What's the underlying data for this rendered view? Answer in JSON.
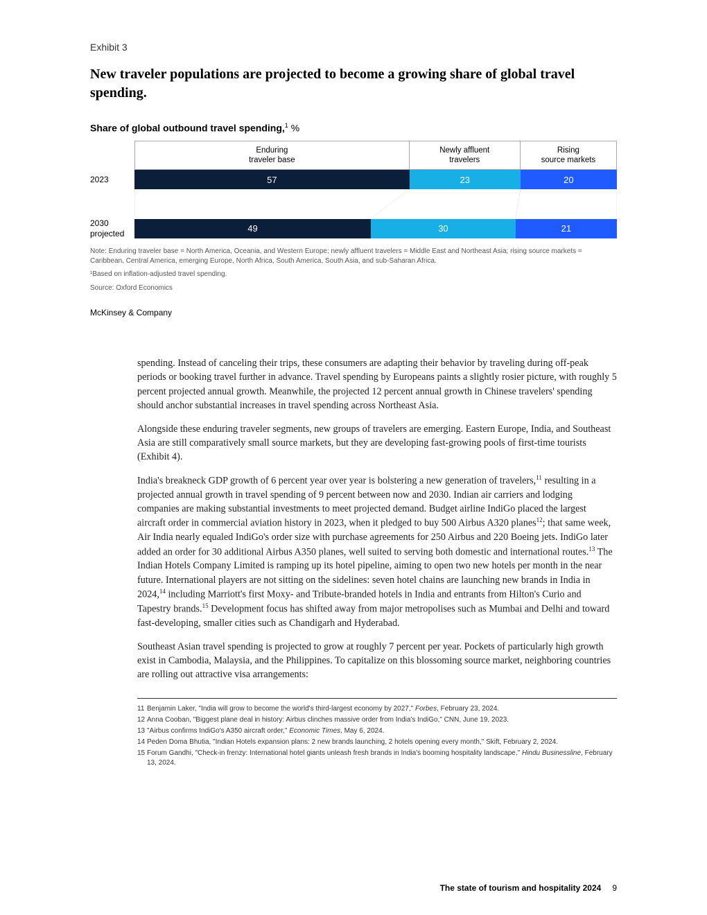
{
  "exhibit": {
    "label": "Exhibit 3",
    "title": "New traveler populations are projected to become a growing share of global travel spending.",
    "chart_title_bold": "Share of global outbound travel spending,",
    "chart_title_sup": "1",
    "chart_title_unit": " %",
    "chart": {
      "type": "stacked-bar",
      "segment_colors": [
        "#0b1e3a",
        "#17afe6",
        "#1f5bff"
      ],
      "border_color": "#aaaaaa",
      "headers": [
        "Enduring\ntraveler base",
        "Newly affluent\ntravelers",
        "Rising\nsource markets"
      ],
      "header_widths_2023": [
        57,
        23,
        20
      ],
      "rows": [
        {
          "label": "2023",
          "values": [
            57,
            23,
            20
          ]
        },
        {
          "label": "2030\nprojected",
          "values": [
            49,
            30,
            21
          ]
        }
      ]
    },
    "note": "Note: Enduring traveler base = North America, Oceania, and Western Europe; newly affluent travelers = Middle East and Northeast Asia; rising source markets = Caribbean, Central America, emerging Europe, North Africa, South America, South Asia, and sub-Saharan Africa.",
    "note2": "¹Based on inflation-adjusted travel spending.",
    "source": "Source: Oxford Economics",
    "brand": "McKinsey & Company"
  },
  "body": {
    "p1": "spending. Instead of canceling their trips, these consumers are adapting their behavior by traveling during off-peak periods or booking travel further in advance. Travel spending by Europeans paints a slightly rosier picture, with roughly 5 percent projected annual growth. Meanwhile, the projected 12 percent annual growth in Chinese travelers' spending should anchor substantial increases in travel spending across Northeast Asia.",
    "p2": "Alongside these enduring traveler segments, new groups of travelers are emerging. Eastern Europe, India, and Southeast Asia are still comparatively small source markets, but they are developing fast-growing pools of first-time tourists (Exhibit 4).",
    "p3a": "India's breakneck GDP growth of 6 percent year over year is bolstering a new generation of travelers,",
    "p3b": " resulting in a projected annual growth in travel spending of 9 percent between now and 2030. Indian air carriers and lodging companies are making substantial investments to meet projected demand. Budget airline IndiGo placed the largest aircraft order in commercial aviation history in 2023, when it pledged to buy 500 Airbus A320 planes",
    "p3c": "; that same week, Air India nearly equaled IndiGo's order size with purchase agreements for 250 Airbus and 220 Boeing jets. IndiGo later added an order for 30 additional Airbus A350 planes, well suited to serving both domestic and international routes.",
    "p3d": " The Indian Hotels Company Limited is ramping up its hotel pipeline, aiming to open two new hotels per month in the near future. International players are not sitting on the sidelines: seven hotel chains are launching new brands in India in 2024,",
    "p3e": " including Marriott's first Moxy- and Tribute-branded hotels in India and entrants from Hilton's Curio and Tapestry brands.",
    "p3f": " Development focus has shifted away from major metropolises such as Mumbai and Delhi and toward fast-developing, smaller cities such as Chandigarh and Hyderabad.",
    "p4": "Southeast Asian travel spending is projected to grow at roughly 7 percent per year. Pockets of particularly high growth exist in Cambodia, Malaysia, and the Philippines. To capitalize on this blossoming source market, neighboring countries are rolling out attractive visa arrangements:",
    "sup11": "11",
    "sup12": "12",
    "sup13": "13",
    "sup14": "14",
    "sup15": "15"
  },
  "footnotes": {
    "n11": "11",
    "t11a": "Benjamin Laker, \"India will grow to become the world's third-largest economy by 2027,\" ",
    "t11i": "Forbes",
    "t11b": ", February 23, 2024.",
    "n12": "12",
    "t12": "Anna Cooban, \"Biggest plane deal in history: Airbus clinches massive order from India's IndiGo,\" CNN, June 19, 2023.",
    "n13": "13",
    "t13a": "\"Airbus confirms IndiGo's A350 aircraft order,\" ",
    "t13i": "Economic Times",
    "t13b": ", May 6, 2024.",
    "n14": "14",
    "t14": "Peden Doma Bhutia, \"Indian Hotels expansion plans: 2 new brands launching, 2 hotels opening every month,\" Skift, February 2, 2024.",
    "n15": "15",
    "t15a": "Forum Gandhi, \"Check-in frenzy: International hotel giants unleash fresh brands in India's booming hospitality landscape,\" ",
    "t15i": "Hindu Businessline",
    "t15b": ", February 13, 2024."
  },
  "footer": {
    "title": "The state of tourism and hospitality 2024",
    "page": "9"
  }
}
